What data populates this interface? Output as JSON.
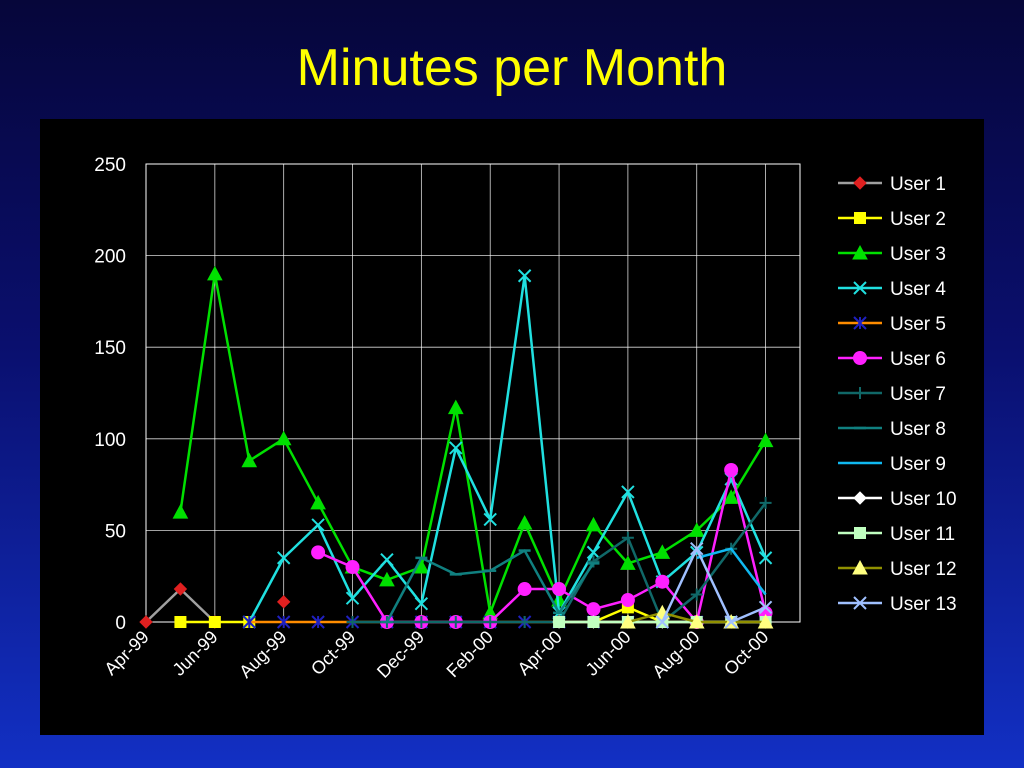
{
  "title": "Minutes per Month",
  "chart_data": {
    "type": "line",
    "title": "Minutes per Month",
    "xlabel": "",
    "ylabel": "",
    "ylim": [
      0,
      250
    ],
    "yticks": [
      0,
      50,
      100,
      150,
      200,
      250
    ],
    "x": [
      "Apr-99",
      "May-99",
      "Jun-99",
      "Jul-99",
      "Aug-99",
      "Sep-99",
      "Oct-99",
      "Nov-99",
      "Dec-99",
      "Jan-00",
      "Feb-00",
      "Mar-00",
      "Apr-00",
      "May-00",
      "Jun-00",
      "Jul-00",
      "Aug-00",
      "Sep-00",
      "Oct-00",
      "Nov-00"
    ],
    "xtick_labels": [
      "Apr-99",
      "",
      "Jun-99",
      "",
      "Aug-99",
      "",
      "Oct-99",
      "",
      "Dec-99",
      "",
      "Feb-00",
      "",
      "Apr-00",
      "",
      "Jun-00",
      "",
      "Aug-00",
      "",
      "Oct-00",
      ""
    ],
    "grid": true,
    "legend": "right",
    "series": [
      {
        "name": "User 1",
        "color": "#a0a0a0",
        "marker": "diamond",
        "markerColor": "#e02020",
        "values": [
          0,
          18,
          0,
          null,
          11,
          null,
          null,
          null,
          null,
          null,
          null,
          null,
          null,
          null,
          null,
          null,
          null,
          null,
          null,
          null
        ]
      },
      {
        "name": "User 2",
        "color": "#ffff00",
        "marker": "square",
        "markerColor": "#ffff00",
        "values": [
          null,
          0,
          0,
          0,
          null,
          null,
          null,
          null,
          null,
          null,
          null,
          null,
          null,
          0,
          8,
          0,
          null,
          null,
          null,
          null
        ]
      },
      {
        "name": "User 3",
        "color": "#00e000",
        "marker": "triangle",
        "markerColor": "#00e000",
        "values": [
          null,
          60,
          190,
          88,
          100,
          65,
          30,
          23,
          30,
          117,
          5,
          54,
          12,
          53,
          32,
          38,
          50,
          68,
          99,
          null
        ]
      },
      {
        "name": "User 4",
        "color": "#20e0e0",
        "marker": "x",
        "markerColor": "#20e0e0",
        "values": [
          null,
          null,
          null,
          0,
          35,
          53,
          13,
          34,
          10,
          95,
          56,
          189,
          5,
          38,
          71,
          22,
          38,
          78,
          35,
          null
        ]
      },
      {
        "name": "User 5",
        "color": "#ff8c00",
        "marker": "star",
        "markerColor": "#2020c0",
        "values": [
          null,
          null,
          null,
          0,
          0,
          0,
          0,
          0,
          0,
          0,
          0,
          0,
          0,
          0,
          0,
          0,
          0,
          0,
          0,
          null
        ]
      },
      {
        "name": "User 6",
        "color": "#ff20ff",
        "marker": "circle",
        "markerColor": "#ff20ff",
        "values": [
          null,
          null,
          null,
          null,
          null,
          38,
          30,
          0,
          0,
          0,
          0,
          18,
          18,
          7,
          12,
          22,
          0,
          83,
          5,
          null
        ]
      },
      {
        "name": "User 7",
        "color": "#106868",
        "marker": "plus",
        "markerColor": "#106868",
        "values": [
          null,
          null,
          null,
          null,
          null,
          null,
          0,
          0,
          0,
          0,
          0,
          0,
          0,
          33,
          46,
          0,
          15,
          40,
          65,
          null
        ]
      },
      {
        "name": "User 8",
        "color": "#108080",
        "marker": "dash",
        "markerColor": "#108080",
        "values": [
          null,
          null,
          null,
          null,
          null,
          null,
          null,
          0,
          35,
          26,
          28,
          39,
          5,
          32,
          null,
          null,
          null,
          null,
          null,
          null
        ]
      },
      {
        "name": "User 9",
        "color": "#10b8f0",
        "marker": "none",
        "markerColor": "#10b8f0",
        "values": [
          null,
          null,
          null,
          null,
          null,
          null,
          null,
          null,
          null,
          null,
          null,
          null,
          null,
          null,
          null,
          null,
          35,
          40,
          15,
          null
        ]
      },
      {
        "name": "User 10",
        "color": "#ffffff",
        "marker": "diamond",
        "markerColor": "#ffffff",
        "values": [
          null,
          null,
          null,
          null,
          null,
          null,
          null,
          null,
          null,
          null,
          null,
          null,
          0,
          0,
          0,
          0,
          0,
          0,
          0,
          null
        ]
      },
      {
        "name": "User 11",
        "color": "#c0ffc0",
        "marker": "square",
        "markerColor": "#c0ffc0",
        "values": [
          null,
          null,
          null,
          null,
          null,
          null,
          null,
          null,
          null,
          null,
          null,
          null,
          0,
          0,
          0,
          0,
          0,
          0,
          0,
          null
        ]
      },
      {
        "name": "User 12",
        "color": "#909000",
        "marker": "triangle",
        "markerColor": "#ffff80",
        "values": [
          null,
          null,
          null,
          null,
          null,
          null,
          null,
          null,
          null,
          null,
          null,
          null,
          null,
          null,
          0,
          5,
          0,
          0,
          0,
          null
        ]
      },
      {
        "name": "User 13",
        "color": "#a0c0ff",
        "marker": "x",
        "markerColor": "#a0c0ff",
        "values": [
          null,
          null,
          null,
          null,
          null,
          null,
          null,
          null,
          null,
          null,
          null,
          null,
          null,
          null,
          null,
          0,
          40,
          0,
          8,
          null
        ]
      }
    ]
  }
}
